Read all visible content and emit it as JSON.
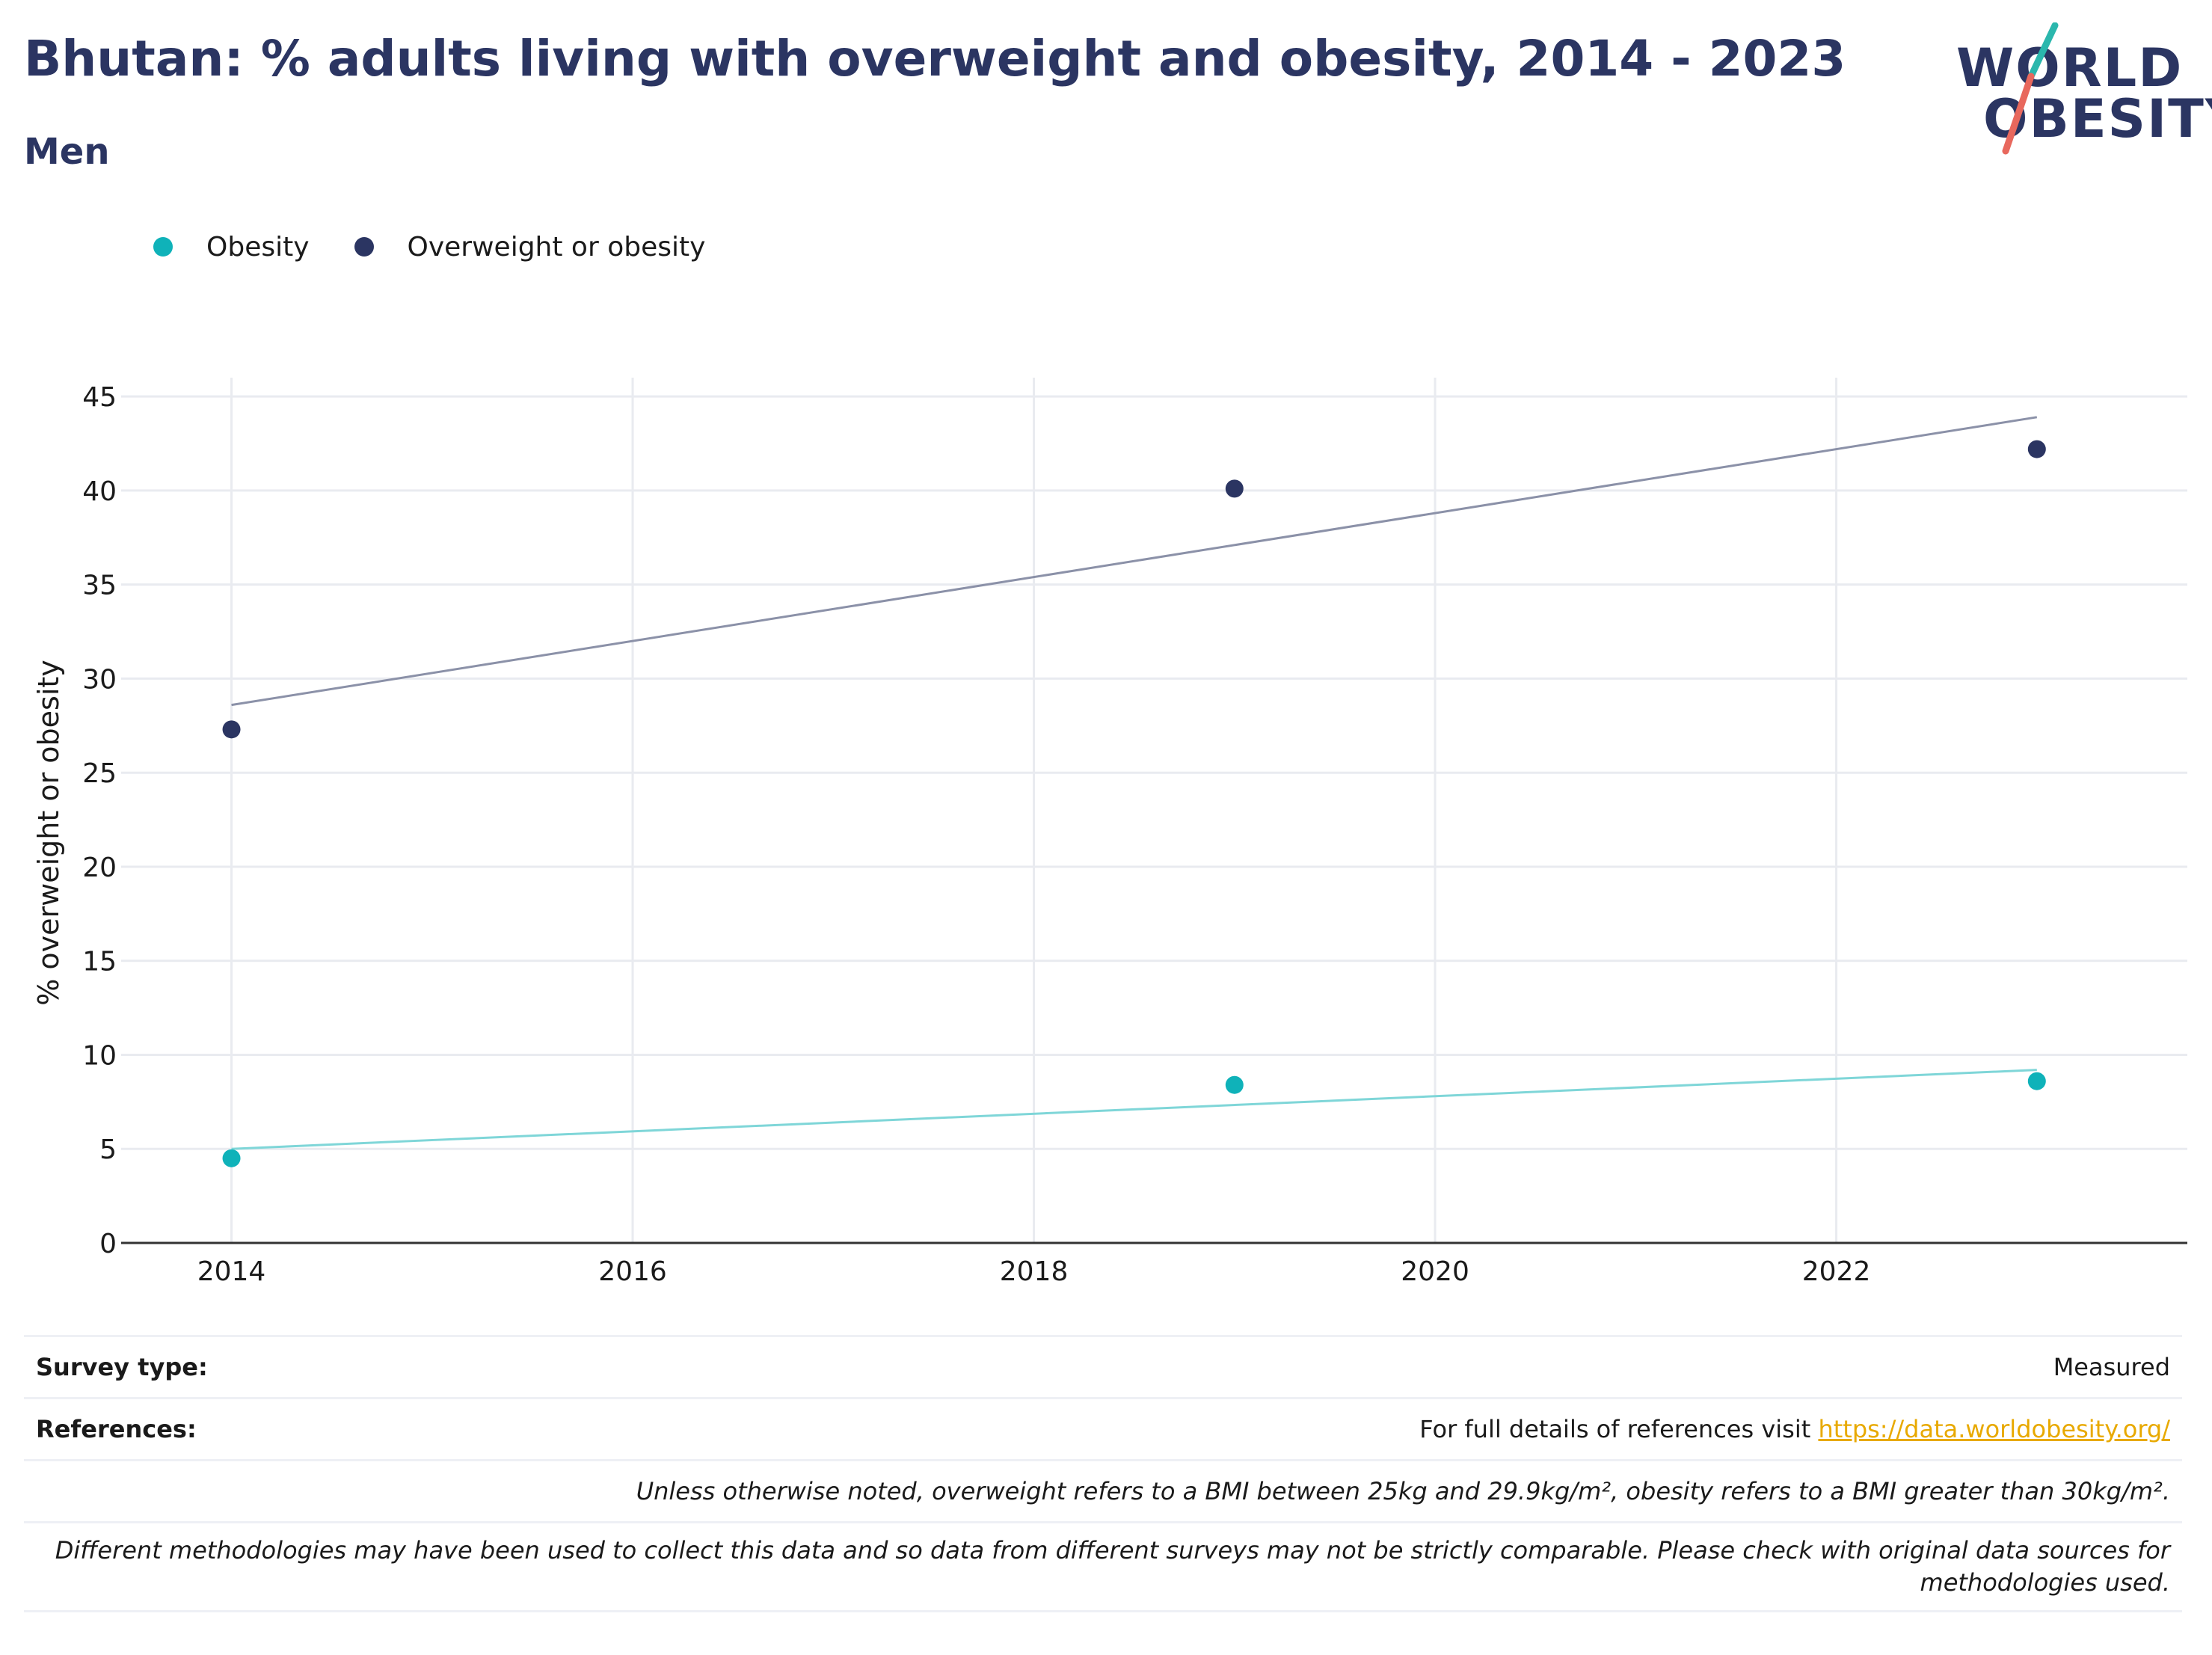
{
  "header": {
    "title": "Bhutan: % adults living with overweight and obesity, 2014 - 2023",
    "subtitle": "Men"
  },
  "logo": {
    "line1": "WORLD",
    "line2": "OBESITY"
  },
  "colors": {
    "obesity": "#0fb2b9",
    "overweight": "#2b3562",
    "obesity_trend": "#7fd6d8",
    "overweight_trend": "#8b91a8",
    "title": "#2b3562",
    "link": "#e8a900"
  },
  "chart_data": {
    "type": "scatter",
    "title": "Bhutan: % adults living with overweight and obesity, 2014 - 2023",
    "subtitle": "Men",
    "xlabel": "",
    "ylabel": "% overweight or obesity",
    "xlim": [
      2013.45,
      2023.75
    ],
    "ylim": [
      0,
      46
    ],
    "x_ticks": [
      "2014",
      "2016",
      "2018",
      "2020",
      "2022"
    ],
    "y_ticks": [
      "0",
      "5",
      "10",
      "15",
      "20",
      "25",
      "30",
      "35",
      "40",
      "45"
    ],
    "grid": true,
    "legend_position": "top-left",
    "series": [
      {
        "name": "Obesity",
        "x": [
          2014,
          2019,
          2023
        ],
        "y": [
          4.5,
          8.4,
          8.6
        ],
        "trend": {
          "x": [
            2014,
            2023
          ],
          "y": [
            5.0,
            9.2
          ]
        }
      },
      {
        "name": "Overweight or obesity",
        "x": [
          2014,
          2019,
          2023
        ],
        "y": [
          27.3,
          40.1,
          42.2
        ],
        "trend": {
          "x": [
            2014,
            2023
          ],
          "y": [
            28.6,
            43.9
          ]
        }
      }
    ]
  },
  "footer": {
    "survey_label": "Survey type:",
    "survey_value": "Measured",
    "references_label": "References:",
    "references_text": "For full details of references visit ",
    "references_link": "https://data.worldobesity.org/",
    "note1": "Unless otherwise noted, overweight refers to a BMI between 25kg and 29.9kg/m², obesity refers to a BMI greater than 30kg/m².",
    "note2": "Different methodologies may have been used to collect this data and so data from different surveys may not be strictly comparable. Please check with original data sources for methodologies used."
  }
}
